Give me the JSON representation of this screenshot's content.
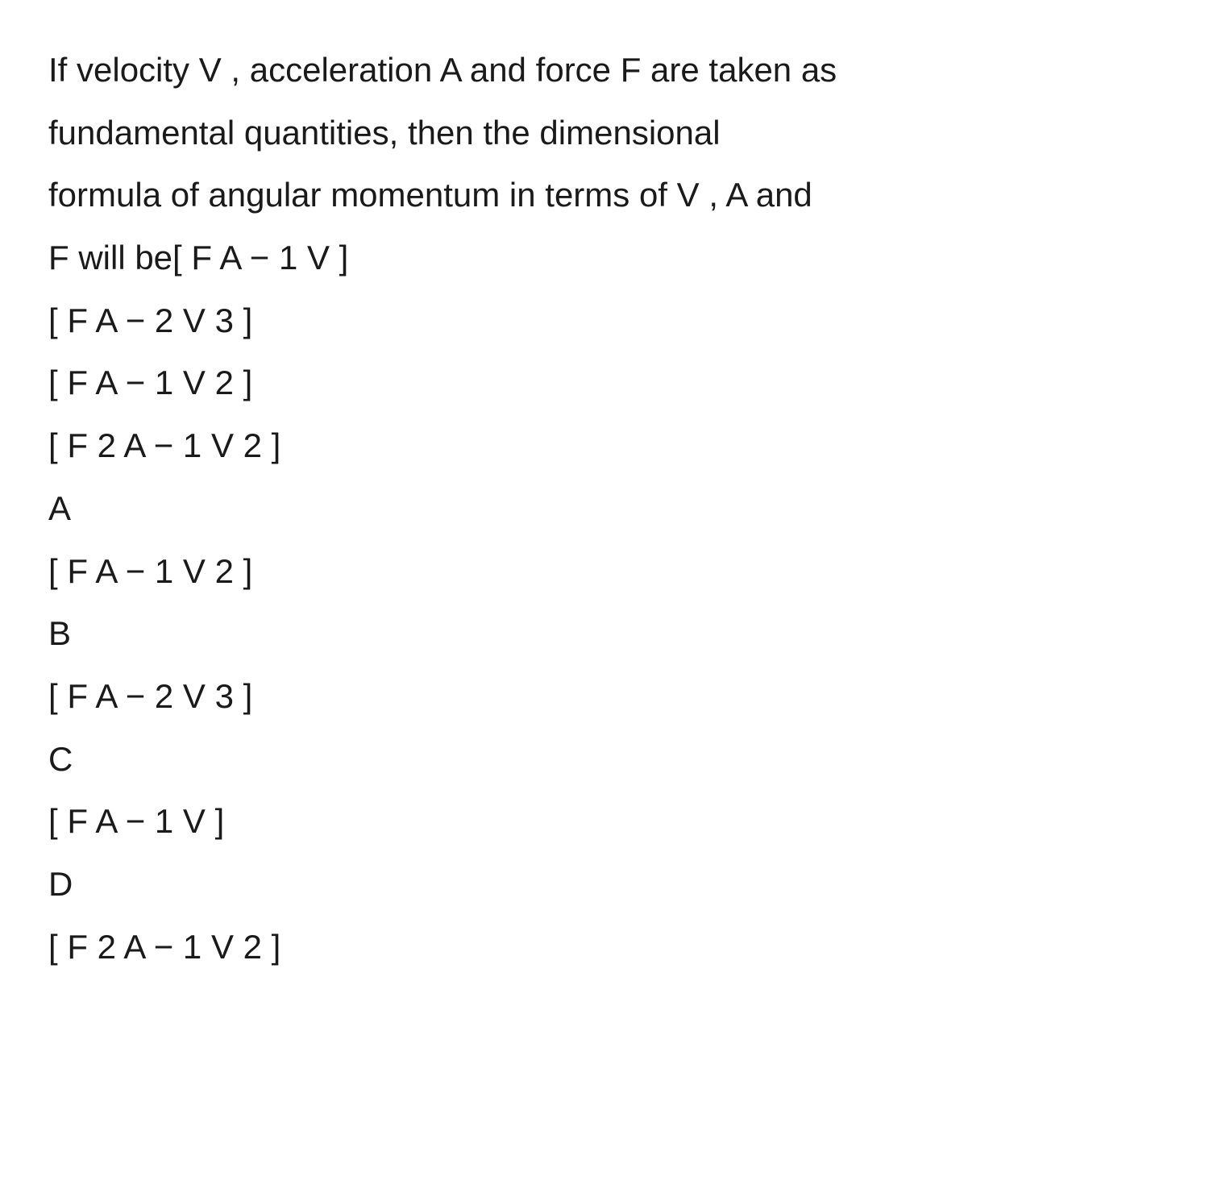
{
  "question": {
    "line1": "If velocity V , acceleration A and force F are taken as",
    "line2": "fundamental quantities, then the dimensional",
    "line3": "formula of angular momentum in terms of V ,   A and",
    "line4": "F will be[ F A − 1 V ]"
  },
  "initial_options": {
    "opt1": "[ F A − 2 V 3 ]",
    "opt2": "[ F A − 1 V 2 ]",
    "opt3": "[ F 2 A − 1 V 2 ]"
  },
  "answers": {
    "a": {
      "label": "A",
      "text": "[ F A − 1 V 2 ]"
    },
    "b": {
      "label": "B",
      "text": "[ F A − 2 V 3 ]"
    },
    "c": {
      "label": "C",
      "text": "[ F A − 1 V ]"
    },
    "d": {
      "label": "D",
      "text": "[ F 2 A − 1 V 2 ]"
    }
  },
  "styling": {
    "font_size": 42,
    "line_height": 1.85,
    "text_color": "#1a1a1a",
    "background_color": "#ffffff",
    "font_weight": 400
  }
}
